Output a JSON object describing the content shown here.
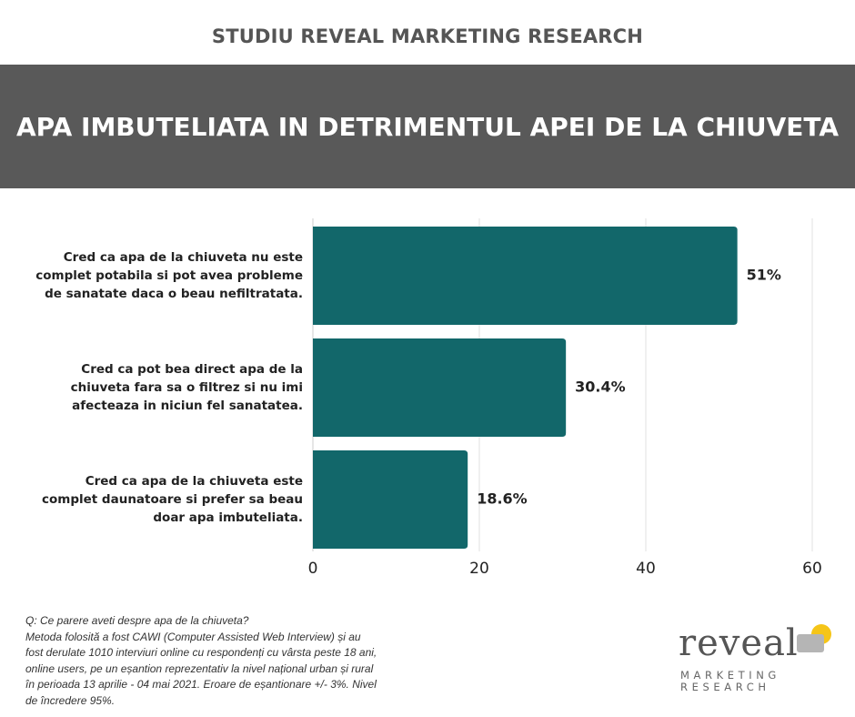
{
  "header": {
    "study_title": "STUDIU REVEAL MARKETING RESEARCH",
    "main_title": "APA IMBUTELIATA IN DETRIMENTUL APEI DE LA CHIUVETA"
  },
  "chart_data": {
    "type": "bar",
    "orientation": "horizontal",
    "categories": [
      "Cred ca apa de la chiuveta nu este complet potabila si pot avea probleme de sanatate daca o beau nefiltratata.",
      "Cred ca pot bea direct apa de la chiuveta fara sa o filtrez si nu imi afecteaza in niciun fel sanatatea.",
      "Cred ca apa de la chiuveta este complet daunatoare si prefer sa beau doar apa imbuteliata."
    ],
    "category_lines": [
      [
        "Cred ca apa de la chiuveta nu este",
        "complet potabila si pot avea probleme",
        "de sanatate daca o beau nefiltratata."
      ],
      [
        "Cred ca pot bea direct apa de la",
        "chiuveta fara sa o filtrez si nu imi",
        "afecteaza in niciun fel sanatatea."
      ],
      [
        "Cred ca apa de la chiuveta este",
        "complet daunatoare si prefer sa beau",
        "doar apa imbuteliata."
      ]
    ],
    "values": [
      51,
      30.4,
      18.6
    ],
    "value_labels": [
      "51%",
      "30.4%",
      "18.6%"
    ],
    "xlim": [
      0,
      60
    ],
    "xticks": [
      0,
      20,
      40,
      60
    ],
    "grid": true,
    "bar_color": "#12676a"
  },
  "footnote": {
    "question": "Q: Ce parere aveti despre apa de la chiuveta?",
    "method": "Metoda folosită a fost CAWI (Computer Assisted Web Interview) și au fost derulate 1010 interviuri online cu respondenți cu vârsta peste 18 ani, online users, pe un eșantion reprezentativ la nivel național urban și rural în perioada 13 aprilie - 04 mai 2021. Eroare de eșantionare +/- 3%. Nivel de încredere 95%."
  },
  "logo": {
    "word": "reveal",
    "line1": "MARKETING",
    "line2": "RESEARCH",
    "icon": "reveal-logo-mark",
    "colors": {
      "yellow": "#f5c518",
      "grey": "#b5b5b5"
    }
  }
}
